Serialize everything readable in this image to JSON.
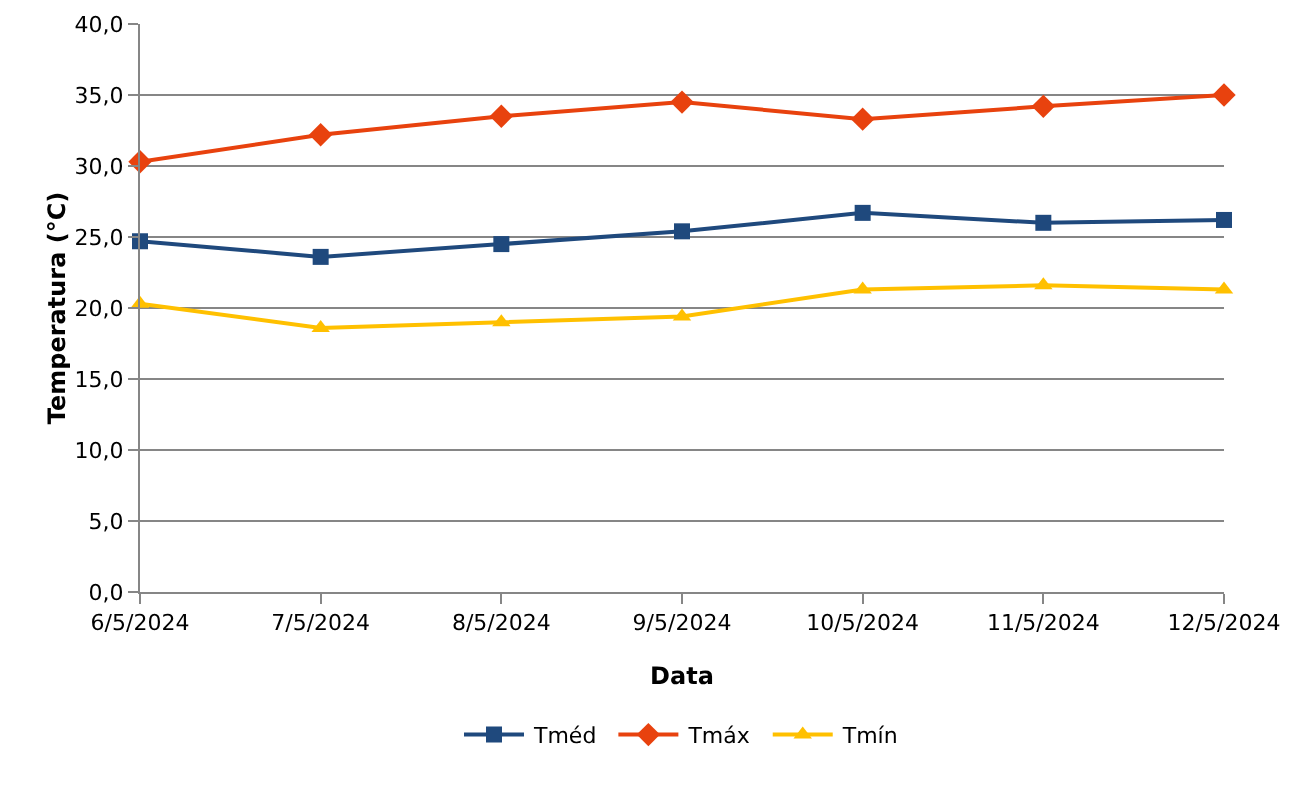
{
  "chart_data": {
    "type": "line",
    "xlabel": "Data",
    "ylabel": "Temperatura (°C)",
    "categories": [
      "6/5/2024",
      "7/5/2024",
      "8/5/2024",
      "9/5/2024",
      "10/5/2024",
      "11/5/2024",
      "12/5/2024"
    ],
    "series": [
      {
        "name": "Tméd",
        "color": "#1f497d",
        "marker": "square",
        "values": [
          24.7,
          23.6,
          24.5,
          25.4,
          26.7,
          26.0,
          26.2
        ]
      },
      {
        "name": "Tmáx",
        "color": "#e8420e",
        "marker": "diamond",
        "values": [
          30.3,
          32.2,
          33.5,
          34.5,
          33.3,
          34.2,
          35.0
        ]
      },
      {
        "name": "Tmín",
        "color": "#ffc000",
        "marker": "triangle",
        "values": [
          20.3,
          18.6,
          19.0,
          19.4,
          21.3,
          21.6,
          21.3
        ]
      }
    ],
    "ylim": [
      0,
      40
    ],
    "yticks": [
      {
        "value": 0,
        "label": "0,0"
      },
      {
        "value": 5,
        "label": "5,0"
      },
      {
        "value": 10,
        "label": "10,0"
      },
      {
        "value": 15,
        "label": "15,0"
      },
      {
        "value": 20,
        "label": "20,0"
      },
      {
        "value": 25,
        "label": "25,0"
      },
      {
        "value": 30,
        "label": "30,0"
      },
      {
        "value": 35,
        "label": "35,0"
      },
      {
        "value": 40,
        "label": "40,0"
      }
    ],
    "grid": "y",
    "legend": "bottom",
    "line_style": "solid"
  }
}
